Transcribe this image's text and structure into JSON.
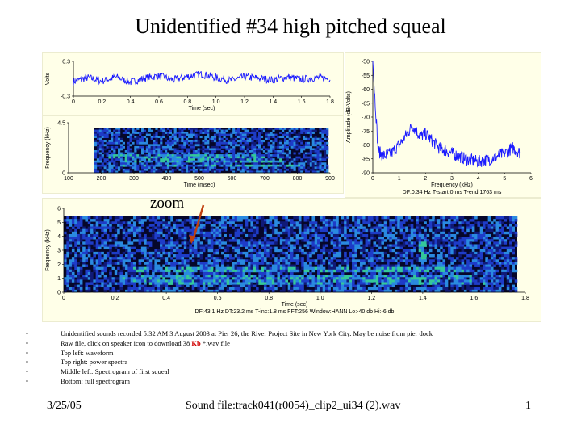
{
  "slide": {
    "title": "Unidentified #34 high pitched squeal",
    "zoom_label": "zoom",
    "date": "3/25/05",
    "footer_text": "Sound file:track041(r0054)_clip2_ui34 (2).wav",
    "page_number": "1"
  },
  "bullets": [
    {
      "text": "Unidentified sounds recorded 5:32 AM 3 August 2003 at Pier 26, the River Project Site in New York City. May be noise from pier dock"
    },
    {
      "pre": "Raw file, click on speaker icon to download 38 ",
      "red": "Kb",
      "post": " *.wav file"
    },
    {
      "text": "Top left: waveform"
    },
    {
      "text": "Top right: power spectra"
    },
    {
      "text": "Middle left: Spectrogram of first squeal"
    },
    {
      "text": "Bottom: full spectrogram"
    }
  ],
  "colors": {
    "trace": "#1a1aff",
    "spec_bg": "#06072a",
    "spec_mid": "#1e3cc8",
    "spec_hi": "#34c89a",
    "panel": "#ffffe8"
  },
  "chart_data": [
    {
      "type": "line",
      "xlabel": "Time (sec)",
      "ylabel": "Volts",
      "xlim": [
        0,
        1.8
      ],
      "ylim": [
        -0.3,
        0.3
      ],
      "x_ticks": [
        "0",
        "0.2",
        "0.4",
        "0.6",
        "0.8",
        "1.0",
        "1.2",
        "1.4",
        "1.6",
        "1.8"
      ],
      "y_ticks": [
        "0.3",
        "-0.3"
      ],
      "x": [
        0,
        0.1,
        0.2,
        0.3,
        0.4,
        0.5,
        0.6,
        0.7,
        0.8,
        0.9,
        1.0,
        1.1,
        1.2,
        1.3,
        1.4,
        1.5,
        1.6,
        1.7,
        1.8
      ],
      "y": [
        -0.05,
        0.02,
        -0.04,
        0.03,
        -0.06,
        0.01,
        0.05,
        -0.02,
        0.04,
        0.08,
        0.02,
        -0.03,
        0.03,
        0.01,
        -0.02,
        0.03,
        -0.01,
        0.02,
        0.0
      ]
    },
    {
      "type": "line",
      "xlabel": "Frequency (kHz)",
      "ylabel": "Amplitude (dB-Volts)",
      "xlim": [
        0,
        6
      ],
      "ylim": [
        -90,
        -50
      ],
      "x_ticks": [
        "0",
        "1",
        "2",
        "3",
        "4",
        "5",
        "6"
      ],
      "y_ticks": [
        "-50",
        "-55",
        "-60",
        "-65",
        "-70",
        "-75",
        "-80",
        "-85",
        "-90"
      ],
      "footnote": "DF:0.34 Hz    T-start:0 ms    T-end:1763 ms",
      "x": [
        0,
        0.1,
        0.2,
        0.4,
        0.7,
        1.0,
        1.3,
        1.5,
        1.8,
        2.0,
        2.5,
        3.0,
        3.5,
        4.0,
        4.5,
        5.0,
        5.3,
        5.6
      ],
      "y": [
        -50,
        -66,
        -82,
        -84,
        -83,
        -80,
        -76,
        -73,
        -77,
        -76,
        -81,
        -83,
        -85,
        -86,
        -85,
        -83,
        -81,
        -83
      ]
    },
    {
      "type": "heatmap",
      "xlabel": "Time (msec)",
      "ylabel": "Frequency (kHz)",
      "xlim": [
        100,
        900
      ],
      "ylim": [
        0,
        4.5
      ],
      "x_ticks": [
        "100",
        "200",
        "300",
        "400",
        "500",
        "600",
        "700",
        "800",
        "900"
      ],
      "y_ticks": [
        "4.5",
        "0"
      ]
    },
    {
      "type": "heatmap",
      "xlabel": "Time (sec)",
      "ylabel": "Frequency (kHz)",
      "xlim": [
        0,
        1.8
      ],
      "ylim": [
        0,
        6
      ],
      "x_ticks": [
        "0",
        "0.2",
        "0.4",
        "0.6",
        "0.8",
        "1.0",
        "1.2",
        "1.4",
        "1.6",
        "1.8"
      ],
      "y_ticks": [
        "0",
        "1",
        "2",
        "3",
        "4",
        "5",
        "6"
      ],
      "footnote": "DF:43.1 Hz    DT:23.2 ms    T-inc:1.8 ms    FFT:256    Window:HANN    Lo:-40 db    Hi:-6 db"
    }
  ]
}
